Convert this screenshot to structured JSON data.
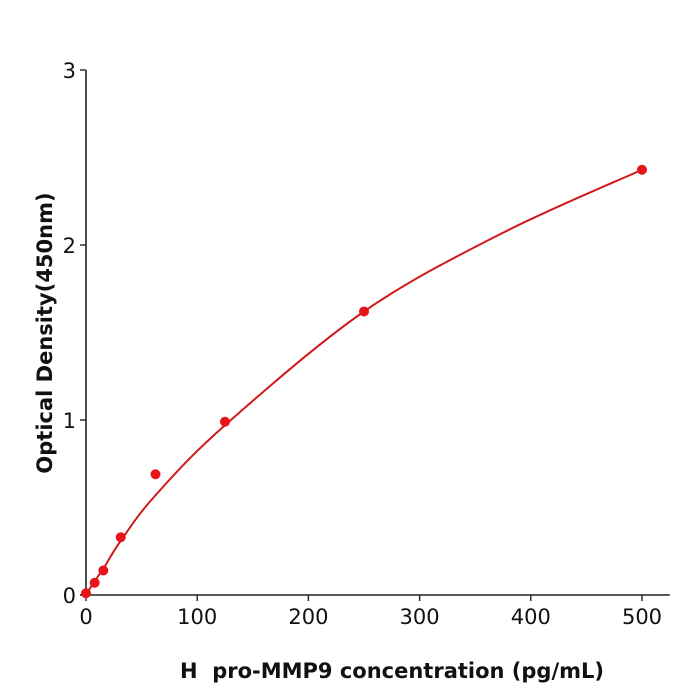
{
  "chart_data": {
    "type": "scatter",
    "title": "",
    "xlabel": "H  pro-MMP9 concentration (pg/mL)",
    "ylabel": "Optical Density(450nm)",
    "xlim": [
      0,
      525
    ],
    "ylim": [
      0,
      3
    ],
    "xticks": [
      0,
      100,
      200,
      300,
      400,
      500
    ],
    "yticks": [
      0,
      1,
      2,
      3
    ],
    "grid": false,
    "series": [
      {
        "kind": "points",
        "color": "#e8141b",
        "x": [
          0,
          7.8,
          15.6,
          31.25,
          62.5,
          125,
          250,
          500
        ],
        "y": [
          0.01,
          0.07,
          0.14,
          0.33,
          0.69,
          0.99,
          1.62,
          2.43
        ]
      },
      {
        "kind": "fit-line",
        "color": "#d01a1a",
        "x": [
          0,
          7.8,
          15.6,
          31.25,
          62.5,
          125,
          250,
          375,
          500
        ],
        "y": [
          0.0,
          0.08,
          0.15,
          0.31,
          0.57,
          0.97,
          1.62,
          2.07,
          2.43
        ]
      }
    ]
  }
}
